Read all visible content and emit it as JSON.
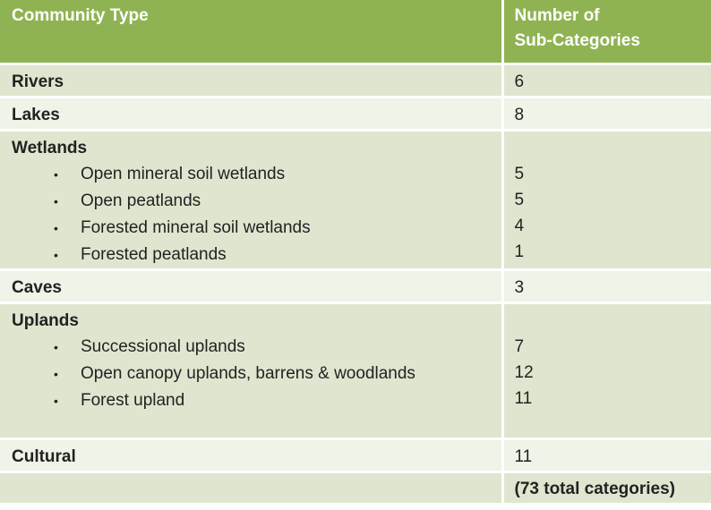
{
  "header": {
    "col1": "Community Type",
    "col2_line1": "Number of",
    "col2_line2": "Sub-Categories"
  },
  "rows": [
    {
      "name": "Rivers",
      "count": "6"
    },
    {
      "name": "Lakes",
      "count": "8"
    },
    {
      "name": "Wetlands",
      "subs": [
        {
          "label": "Open mineral soil wetlands",
          "count": "5"
        },
        {
          "label": "Open peatlands",
          "count": "5"
        },
        {
          "label": "Forested mineral soil wetlands",
          "count": "4"
        },
        {
          "label": "Forested peatlands",
          "count": "1"
        }
      ]
    },
    {
      "name": "Caves",
      "count": "3"
    },
    {
      "name": "Uplands",
      "subs": [
        {
          "label": "Successional uplands",
          "count": "7"
        },
        {
          "label": "Open canopy uplands, barrens & woodlands",
          "count": "12"
        },
        {
          "label": "Forest upland",
          "count": "11"
        }
      ]
    },
    {
      "name": "Cultural",
      "count": "11"
    }
  ],
  "footer": {
    "total": "(73 total categories)"
  },
  "bullet_char": "•",
  "colors": {
    "header": "#8fb352",
    "row_dark": "#dee6cf",
    "row_light": "#eff3e8"
  }
}
